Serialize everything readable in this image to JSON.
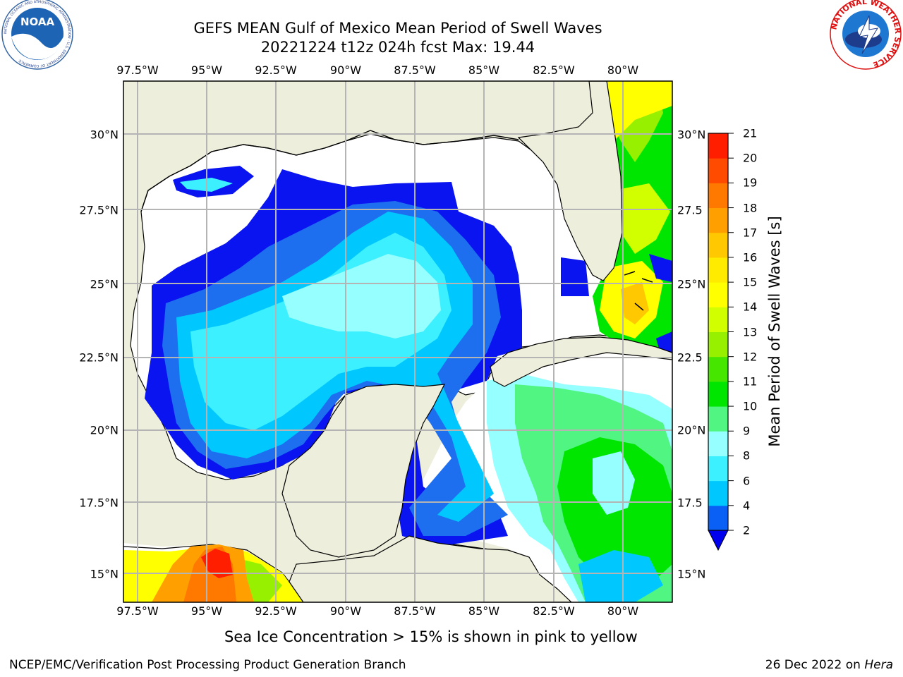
{
  "header": {
    "title_line1": "GEFS MEAN Gulf of Mexico Mean Period of Swell Waves",
    "title_line2": "20221224 t12z 024h fcst   Max: 19.44"
  },
  "logos": {
    "noaa_text": "NOAA",
    "noaa_ring": "NATIONAL OCEANIC AND ATMOSPHERIC ADMINISTRATION · U.S. DEPARTMENT OF COMMERCE",
    "nws_ring": "NATIONAL WEATHER SERVICE"
  },
  "map": {
    "lon_ticks": [
      "97.5°W",
      "95°W",
      "92.5°W",
      "90°W",
      "87.5°W",
      "85°W",
      "82.5°W",
      "80°W"
    ],
    "lat_ticks_left": [
      "30°N",
      "27.5°N",
      "25°N",
      "22.5°N",
      "20°N",
      "17.5°N",
      "15°N"
    ],
    "lat_ticks_right": [
      "30°N",
      "27.5",
      "25°N",
      "22.5",
      "20°N",
      "17.5",
      "15°N"
    ],
    "land_color": "#eeeedc",
    "ocean_color": "#ffffff",
    "grid_color": "#b4b4b4"
  },
  "colorbar": {
    "label": "Mean Period of Swell Waves [s]",
    "ticks": [
      "2",
      "4",
      "6",
      "8",
      "9",
      "10",
      "11",
      "12",
      "13",
      "14",
      "15",
      "16",
      "17",
      "18",
      "19",
      "20",
      "21"
    ],
    "colors": [
      "#0a5ff5",
      "#00c8ff",
      "#3cf0ff",
      "#96ffff",
      "#50f582",
      "#00e600",
      "#46e600",
      "#96f000",
      "#d2ff00",
      "#ffff00",
      "#ffeb00",
      "#ffc800",
      "#ffa000",
      "#ff7800",
      "#ff4b00",
      "#ff1e00"
    ],
    "extend_color": "#0000ee"
  },
  "note": "Sea Ice Concentration > 15% is shown in pink to yellow",
  "footer": {
    "left": "NCEP/EMC/Verification Post Processing Product Generation Branch",
    "right_date": "26 Dec 2022 on ",
    "right_host": "Hera"
  }
}
